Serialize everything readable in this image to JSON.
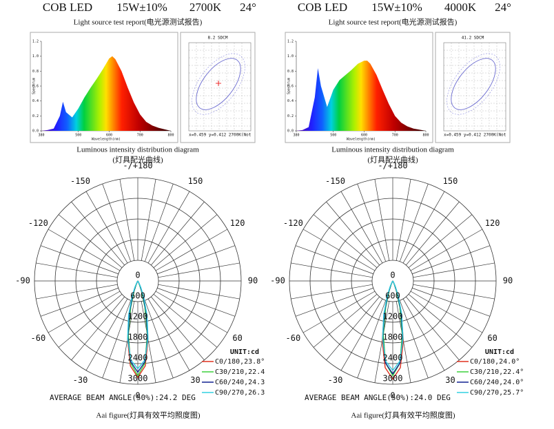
{
  "chart_data": [
    {
      "type": "spectrum",
      "header": [
        "COB LED",
        "15W±10%",
        "2700K",
        "24°"
      ],
      "title": "Light source test report(电光源测试报告)",
      "ylabel": "Spectrum",
      "xlabel": "Wavelength(nm)",
      "x": [
        380,
        400,
        420,
        440,
        450,
        460,
        480,
        500,
        520,
        540,
        560,
        580,
        600,
        610,
        620,
        640,
        660,
        680,
        700,
        720,
        740,
        760,
        780,
        800
      ],
      "values": [
        0,
        0.01,
        0.03,
        0.2,
        0.39,
        0.25,
        0.18,
        0.3,
        0.45,
        0.58,
        0.7,
        0.83,
        0.97,
        1.0,
        0.96,
        0.8,
        0.58,
        0.38,
        0.22,
        0.12,
        0.07,
        0.04,
        0.02,
        0
      ],
      "xlim": [
        380,
        800
      ],
      "xticks": [
        380,
        500,
        600,
        700,
        800
      ],
      "ylim": [
        0,
        1.2
      ],
      "yticks": [
        {
          "value": 0,
          "label": "0.0"
        },
        0.2,
        0.4,
        0.6,
        0.8,
        {
          "value": 1,
          "label": "1.0"
        },
        1.2
      ],
      "chromaticity": {
        "label": "8.2 SDCM",
        "coords": "x=0.459 y=0.412 2700K(Not"
      }
    },
    {
      "type": "polar",
      "title": "Luminous intensity distribution diagram",
      "subtitle": "(灯具配光曲线)",
      "angle_ticks": [
        {
          "value": 180,
          "label": "-/+180"
        },
        -150,
        150,
        -120,
        120,
        -90,
        90,
        -60,
        60,
        -30,
        30,
        0
      ],
      "rlim": [
        0,
        3000
      ],
      "rticks": [
        0,
        600,
        1200,
        1800,
        2400,
        3000
      ],
      "theta": [
        -40,
        -35,
        -30,
        -25,
        -20,
        -15,
        -10,
        -5,
        0,
        5,
        10,
        15,
        20,
        25,
        30,
        35,
        40
      ],
      "series": [
        {
          "name": "C0/180,23.8°",
          "color": "#e0301e",
          "values": [
            1,
            7,
            34,
            132,
            395,
            930,
            1716,
            2478,
            2800,
            2478,
            1716,
            930,
            395,
            132,
            34,
            7,
            1
          ]
        },
        {
          "name": "C30/210,22.4",
          "color": "#3cd03c",
          "values": [
            0,
            3,
            19,
            88,
            302,
            792,
            1581,
            2395,
            2750,
            2395,
            1581,
            792,
            302,
            88,
            19,
            3,
            0
          ]
        },
        {
          "name": "C60/240,24.3",
          "color": "#102090",
          "values": [
            1,
            8,
            39,
            140,
            405,
            922,
            1656,
            2356,
            2650,
            2356,
            1656,
            922,
            405,
            140,
            39,
            8,
            1
          ]
        },
        {
          "name": "C90/270,26.3",
          "color": "#30d0e0",
          "values": [
            4,
            19,
            69,
            209,
            513,
            1035,
            1709,
            2308,
            2550,
            2308,
            1709,
            1035,
            513,
            209,
            69,
            19,
            4
          ]
        }
      ],
      "unit_label": "UNIT:cd",
      "annotation": "AVERAGE BEAM ANGLE(50%):24.2 DEG",
      "caption": "Aai figure(灯具有效平均照度图)"
    },
    {
      "type": "spectrum",
      "header": [
        "COB LED",
        "15W±10%",
        "4000K",
        "24°"
      ],
      "title": "Light source test report(电光源测试报告)",
      "ylabel": "Spectrum",
      "xlabel": "Wavelength(nm)",
      "x": [
        380,
        400,
        420,
        440,
        450,
        460,
        480,
        500,
        520,
        540,
        560,
        580,
        600,
        610,
        620,
        640,
        660,
        680,
        700,
        720,
        740,
        760,
        780,
        800
      ],
      "values": [
        0,
        0.01,
        0.05,
        0.45,
        0.84,
        0.6,
        0.32,
        0.55,
        0.68,
        0.75,
        0.82,
        0.9,
        0.94,
        0.94,
        0.9,
        0.75,
        0.55,
        0.36,
        0.2,
        0.11,
        0.06,
        0.03,
        0.015,
        0
      ],
      "xlim": [
        380,
        800
      ],
      "xticks": [
        380,
        500,
        600,
        700,
        800
      ],
      "ylim": [
        0,
        1.2
      ],
      "yticks": [
        {
          "value": 0,
          "label": "0.0"
        },
        0.2,
        0.4,
        0.6,
        0.8,
        {
          "value": 1,
          "label": "1.0"
        },
        1.2
      ],
      "chromaticity": {
        "label": "41.2 SDCM",
        "coords": "x=0.459 y=0.412 2700K(Not"
      }
    },
    {
      "type": "polar",
      "title": "Luminous intensity distribution diagram",
      "subtitle": "(灯具配光曲线)",
      "angle_ticks": [
        {
          "value": 180,
          "label": "-/+180"
        },
        -150,
        150,
        -120,
        120,
        -90,
        90,
        -60,
        60,
        -30,
        30,
        0
      ],
      "rlim": [
        0,
        3000
      ],
      "rticks": [
        0,
        600,
        1200,
        1800,
        2400,
        3000
      ],
      "theta": [
        -40,
        -35,
        -30,
        -25,
        -20,
        -15,
        -10,
        -5,
        0,
        5,
        10,
        15,
        20,
        25,
        30,
        35,
        40
      ],
      "series": [
        {
          "name": "C0/180,24.0°",
          "color": "#e0301e",
          "values": [
            1,
            8,
            37,
            140,
            416,
            966,
            1761,
            2528,
            2850,
            2528,
            1761,
            966,
            416,
            140,
            37,
            8,
            1
          ]
        },
        {
          "name": "C30/210,22.4°",
          "color": "#3cd03c",
          "values": [
            0,
            3,
            19,
            88,
            302,
            792,
            1581,
            2395,
            2750,
            2395,
            1581,
            792,
            302,
            88,
            19,
            3,
            0
          ]
        },
        {
          "name": "C60/240,24.0°",
          "color": "#102090",
          "values": [
            1,
            8,
            35,
            132,
            394,
            915,
            1669,
            2395,
            2700,
            2395,
            1669,
            915,
            394,
            132,
            35,
            8,
            1
          ]
        },
        {
          "name": "C90/270,25.7°",
          "color": "#30d0e0",
          "values": [
            3,
            15,
            60,
            189,
            486,
            1011,
            1708,
            2340,
            2600,
            2340,
            1708,
            1011,
            486,
            189,
            60,
            15,
            3
          ]
        }
      ],
      "unit_label": "UNIT:cd",
      "annotation": "AVERAGE BEAM ANGLE(50%):24.0 DEG",
      "caption": "Aai figure(灯具有效平均照度图)"
    }
  ]
}
